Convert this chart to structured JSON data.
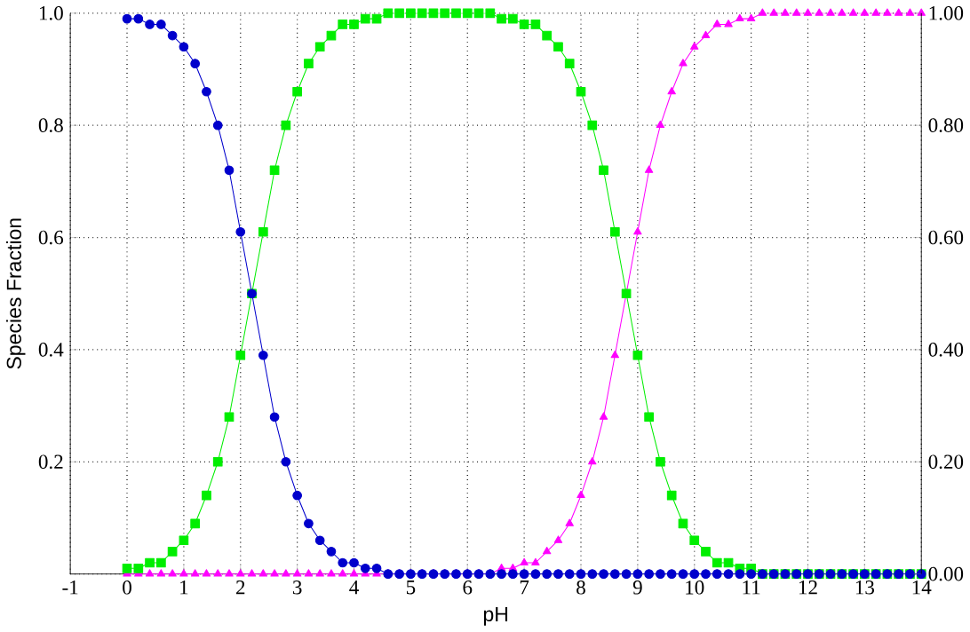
{
  "chart_data": {
    "type": "line",
    "xlabel": "pH",
    "ylabel": "Species Fraction",
    "x": [
      0,
      0.2,
      0.4,
      0.6,
      0.8,
      1,
      1.2,
      1.4,
      1.6,
      1.8,
      2,
      2.2,
      2.4,
      2.6,
      2.8,
      3,
      3.2,
      3.4,
      3.6,
      3.8,
      4,
      4.2,
      4.4,
      4.6,
      4.8,
      5,
      5.2,
      5.4,
      5.6,
      5.8,
      6,
      6.2,
      6.4,
      6.6,
      6.8,
      7,
      7.2,
      7.4,
      7.6,
      7.8,
      8,
      8.2,
      8.4,
      8.6,
      8.8,
      9,
      9.2,
      9.4,
      9.6,
      9.8,
      10,
      10.2,
      10.4,
      10.6,
      10.8,
      11,
      11.2,
      11.4,
      11.6,
      11.8,
      12,
      12.2,
      12.4,
      12.6,
      12.8,
      13,
      13.2,
      13.4,
      13.6,
      13.8,
      14
    ],
    "series": [
      {
        "color": "#0000cc",
        "marker": "circle",
        "values": [
          0.99,
          0.99,
          0.98,
          0.98,
          0.96,
          0.94,
          0.91,
          0.86,
          0.8,
          0.72,
          0.61,
          0.5,
          0.39,
          0.28,
          0.2,
          0.14,
          0.09,
          0.06,
          0.04,
          0.02,
          0.02,
          0.01,
          0.01,
          0,
          0,
          0,
          0,
          0,
          0,
          0,
          0,
          0,
          0,
          0,
          0,
          0,
          0,
          0,
          0,
          0,
          0,
          0,
          0,
          0,
          0,
          0,
          0,
          0,
          0,
          0,
          0,
          0,
          0,
          0,
          0,
          0,
          0,
          0,
          0,
          0,
          0,
          0,
          0,
          0,
          0,
          0,
          0,
          0,
          0,
          0,
          0
        ]
      },
      {
        "color": "#00ee00",
        "marker": "square",
        "values": [
          0.01,
          0.01,
          0.02,
          0.02,
          0.04,
          0.06,
          0.09,
          0.14,
          0.2,
          0.28,
          0.39,
          0.5,
          0.61,
          0.72,
          0.8,
          0.86,
          0.91,
          0.94,
          0.96,
          0.98,
          0.98,
          0.99,
          0.99,
          1,
          1,
          1,
          1,
          1,
          1,
          1,
          1,
          1,
          1,
          0.99,
          0.99,
          0.98,
          0.98,
          0.96,
          0.94,
          0.91,
          0.86,
          0.8,
          0.72,
          0.61,
          0.5,
          0.39,
          0.28,
          0.2,
          0.14,
          0.09,
          0.06,
          0.04,
          0.02,
          0.02,
          0.01,
          0.01,
          0,
          0,
          0,
          0,
          0,
          0,
          0,
          0,
          0,
          0,
          0,
          0,
          0,
          0,
          0
        ]
      },
      {
        "color": "#ff00ff",
        "marker": "triangle",
        "values": [
          0,
          0,
          0,
          0,
          0,
          0,
          0,
          0,
          0,
          0,
          0,
          0,
          0,
          0,
          0,
          0,
          0,
          0,
          0,
          0,
          0,
          0,
          0,
          0,
          0,
          0,
          0,
          0,
          0,
          0,
          0,
          0,
          0,
          0.01,
          0.01,
          0.02,
          0.02,
          0.04,
          0.06,
          0.09,
          0.14,
          0.2,
          0.28,
          0.39,
          0.5,
          0.61,
          0.72,
          0.8,
          0.86,
          0.91,
          0.94,
          0.96,
          0.98,
          0.98,
          0.99,
          0.99,
          1,
          1,
          1,
          1,
          1,
          1,
          1,
          1,
          1,
          1,
          1,
          1,
          1,
          1,
          1
        ]
      }
    ],
    "xlim": [
      -1,
      14
    ],
    "xticks": [
      -1,
      0,
      1,
      2,
      3,
      4,
      5,
      6,
      7,
      8,
      9,
      10,
      11,
      12,
      13,
      14
    ],
    "ylim": [
      0,
      1
    ],
    "yticks": [
      {
        "value": 0,
        "label": null
      },
      0.2,
      0.4,
      0.6,
      0.8,
      {
        "value": 1,
        "label": "1.0"
      }
    ],
    "y2lim": [
      0,
      1
    ],
    "y2ticks": [
      {
        "value": 0,
        "label": "0.00"
      },
      {
        "value": 0.2,
        "label": "0.20"
      },
      {
        "value": 0.4,
        "label": "0.40"
      },
      {
        "value": 0.6,
        "label": "0.60"
      },
      {
        "value": 0.8,
        "label": "0.80"
      },
      {
        "value": 1,
        "label": "1.00"
      }
    ],
    "grid": true,
    "line_style": "solid"
  }
}
